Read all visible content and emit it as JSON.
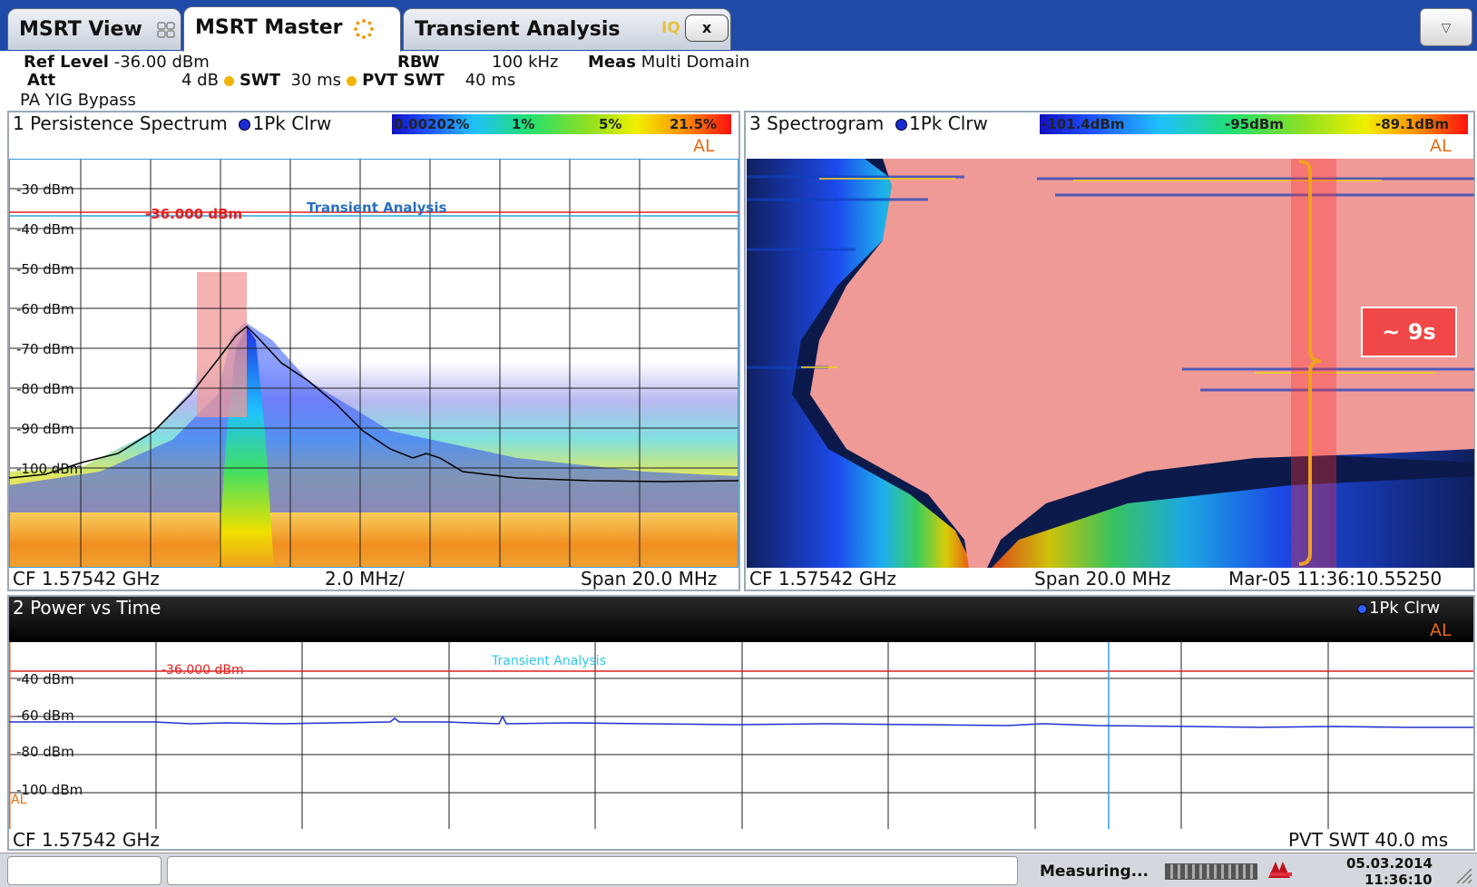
{
  "tabs": [
    {
      "label": "MSRT View",
      "icon": "grid-icon"
    },
    {
      "label": "MSRT Master",
      "icon": "spinner-icon"
    },
    {
      "label": "Transient Analysis",
      "icon": "iq-icon"
    }
  ],
  "tab_close_label": "x",
  "dropdown_icon": "▽",
  "settings": {
    "ref_level_label": "Ref Level",
    "ref_level_value": "-36.00 dBm",
    "att_label": "Att",
    "att_value": "4 dB",
    "swt_label": "SWT",
    "swt_value": "30 ms",
    "rbw_label": "RBW",
    "rbw_value": "100 kHz",
    "pvt_swt_label": "PVT SWT",
    "pvt_swt_value": "40 ms",
    "meas_label": "Meas",
    "meas_value": "Multi Domain",
    "input_note": "PA YIG Bypass"
  },
  "persistence": {
    "title": "1 Persistence Spectrum",
    "trace": "1Pk Clrw",
    "colorbar": [
      "0.00202%",
      "1%",
      "5%",
      "21.5%"
    ],
    "al": "AL",
    "y_ticks": [
      "-30 dBm",
      "-40 dBm",
      "-50 dBm",
      "-60 dBm",
      "-70 dBm",
      "-80 dBm",
      "-90 dBm",
      "-100 dBm"
    ],
    "threshold_label": "-36.000 dBm",
    "marker_label": "Transient Analysis",
    "footer_left": "CF 1.57542 GHz",
    "footer_mid": "2.0 MHz/",
    "footer_right": "Span 20.0 MHz"
  },
  "spectrogram": {
    "title": "3 Spectrogram",
    "trace": "1Pk Clrw",
    "colorbar": [
      "-101.4dBm",
      "-95dBm",
      "-89.1dBm"
    ],
    "al": "AL",
    "annotation": "~ 9s",
    "footer_left": "CF 1.57542 GHz",
    "footer_mid": "Span 20.0 MHz",
    "footer_right": "Mar-05 11:36:10.55250"
  },
  "pvt": {
    "title": "2 Power vs Time",
    "trace": "1Pk Clrw",
    "al": "AL",
    "y_ticks": [
      "-40 dBm",
      "-60 dBm",
      "-80 dBm",
      "-100 dBm"
    ],
    "threshold_label": "-36.000 dBm",
    "marker_label": "Transient Analysis",
    "footer_left": "CF 1.57542 GHz",
    "footer_right": "PVT SWT 40.0 ms"
  },
  "status": {
    "measuring": "Measuring...",
    "date": "05.03.2014",
    "time": "11:36:10"
  },
  "colors": {
    "tabbar": "#1f4aa8",
    "threshold": "#e02020",
    "marker": "#30c8e8",
    "al": "#e86a10",
    "annotation_bracket": "#f0a020",
    "overlay": "#f09a98"
  }
}
